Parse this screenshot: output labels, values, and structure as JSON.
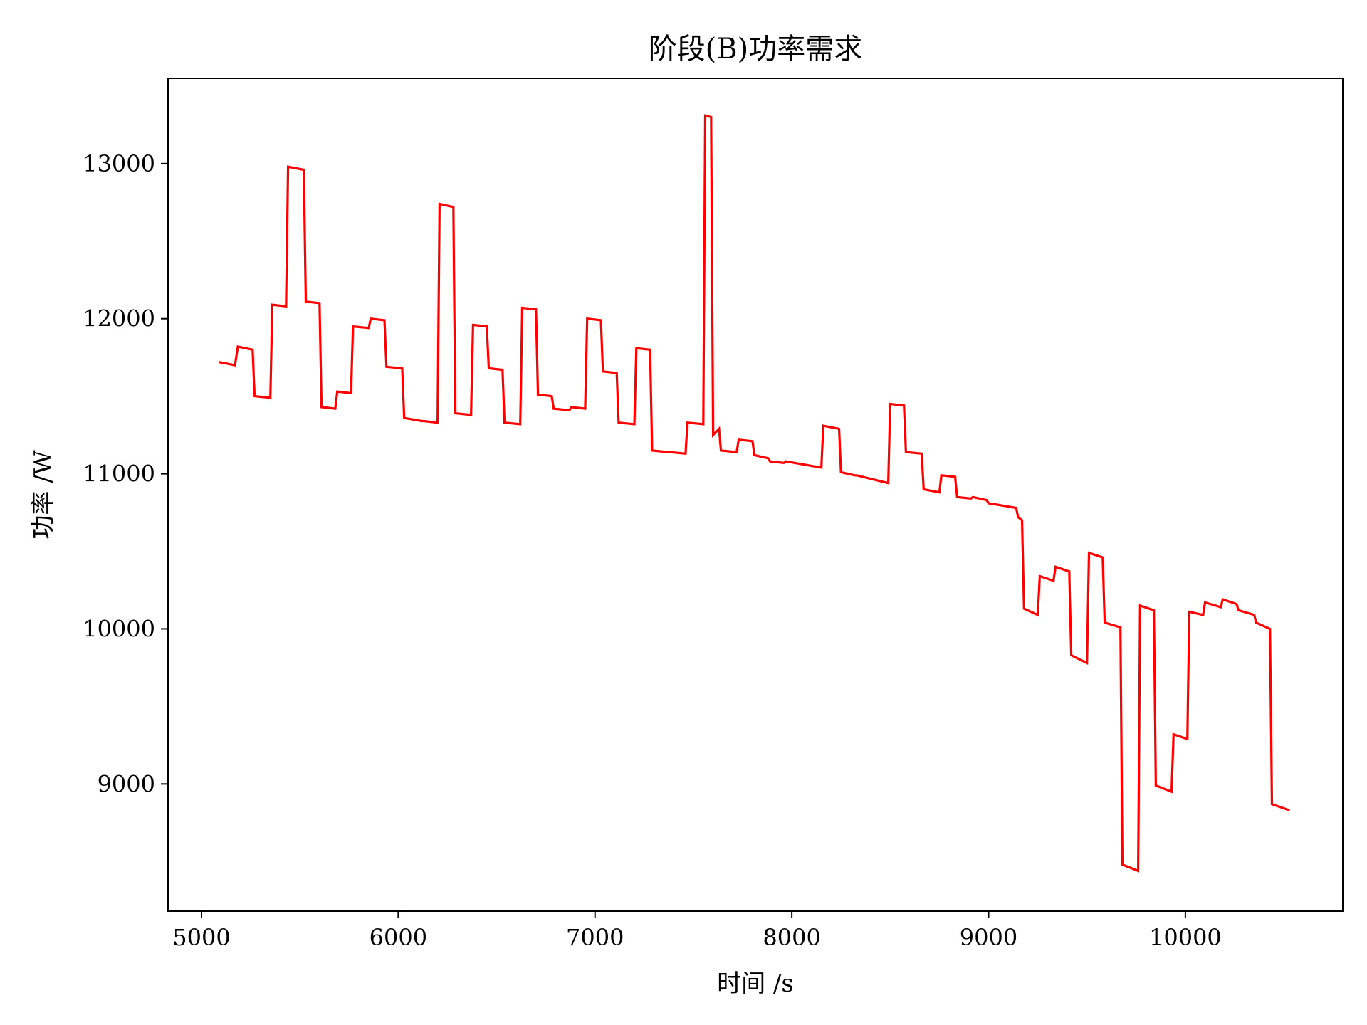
{
  "chart_data": {
    "type": "line",
    "title": "阶段(B)功率需求",
    "xlabel": "时间 /s",
    "ylabel": "功率 /W",
    "xlim": [
      4830,
      10800
    ],
    "ylim": [
      8180,
      13550
    ],
    "xticks": [
      5000,
      6000,
      7000,
      8000,
      9000,
      10000
    ],
    "yticks": [
      9000,
      10000,
      11000,
      12000,
      13000
    ],
    "grid": false,
    "legend": "none",
    "series": [
      {
        "color": "#ff0000",
        "x": [
          5090,
          5170,
          5185,
          5260,
          5270,
          5350,
          5360,
          5430,
          5440,
          5520,
          5530,
          5600,
          5610,
          5680,
          5690,
          5760,
          5770,
          5850,
          5860,
          5930,
          5940,
          6020,
          6030,
          6120,
          6130,
          6200,
          6210,
          6280,
          6290,
          6370,
          6380,
          6450,
          6460,
          6530,
          6540,
          6620,
          6630,
          6700,
          6710,
          6780,
          6790,
          6870,
          6880,
          6950,
          6960,
          7030,
          7040,
          7110,
          7120,
          7200,
          7210,
          7280,
          7290,
          7370,
          7380,
          7460,
          7470,
          7550,
          7560,
          7590,
          7600,
          7630,
          7640,
          7720,
          7730,
          7800,
          7810,
          7880,
          7890,
          7960,
          7970,
          8150,
          8160,
          8240,
          8250,
          8320,
          8330,
          8490,
          8500,
          8570,
          8580,
          8660,
          8670,
          8750,
          8760,
          8830,
          8840,
          8910,
          8920,
          8990,
          9000,
          9140,
          9150,
          9170,
          9180,
          9250,
          9260,
          9330,
          9340,
          9410,
          9420,
          9500,
          9510,
          9580,
          9590,
          9670,
          9680,
          9760,
          9770,
          9840,
          9850,
          9930,
          9940,
          10010,
          10020,
          10090,
          10100,
          10180,
          10190,
          10260,
          10270,
          10350,
          10360,
          10430,
          10440,
          10530
        ],
        "y": [
          11720,
          11700,
          11820,
          11800,
          11500,
          11490,
          12090,
          12080,
          12980,
          12960,
          12110,
          12100,
          11430,
          11420,
          11530,
          11520,
          11950,
          11940,
          12000,
          11990,
          11690,
          11680,
          11360,
          11340,
          11340,
          11330,
          12740,
          12720,
          11390,
          11380,
          11960,
          11950,
          11680,
          11670,
          11330,
          11320,
          12070,
          12060,
          11510,
          11500,
          11420,
          11410,
          11430,
          11420,
          12000,
          11990,
          11660,
          11650,
          11330,
          11320,
          11810,
          11800,
          11150,
          11140,
          11140,
          11130,
          11330,
          11320,
          13310,
          13300,
          11250,
          11290,
          11150,
          11140,
          11220,
          11210,
          11120,
          11100,
          11080,
          11070,
          11080,
          11040,
          11310,
          11290,
          11010,
          10990,
          10990,
          10940,
          11450,
          11440,
          11140,
          11130,
          10900,
          10880,
          10990,
          10980,
          10850,
          10840,
          10850,
          10830,
          10810,
          10780,
          10720,
          10700,
          10130,
          10090,
          10340,
          10310,
          10400,
          10370,
          9830,
          9780,
          10490,
          10460,
          10040,
          10010,
          8480,
          8440,
          10150,
          10120,
          8990,
          8950,
          9320,
          9290,
          10110,
          10090,
          10170,
          10140,
          10190,
          10160,
          10120,
          10090,
          10040,
          10000,
          8870,
          8830
        ]
      }
    ]
  }
}
